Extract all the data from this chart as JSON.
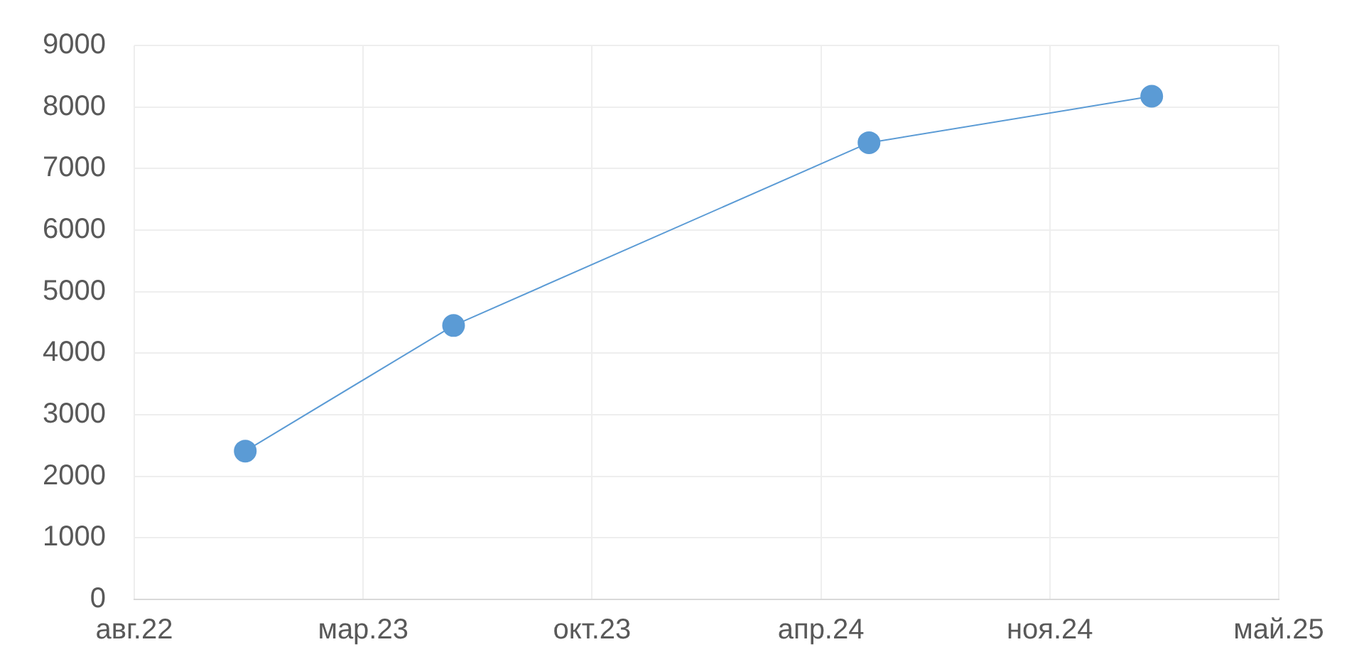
{
  "chart_data": {
    "type": "line",
    "x": [
      "2022-12-06",
      "2023-06-06",
      "2024-06-03",
      "2025-02-05"
    ],
    "series": [
      {
        "color": "#5b9bd5",
        "values": [
          2410,
          4450,
          7420,
          8175
        ]
      }
    ],
    "xlim": [
      "2022-08-31",
      "2025-05-27"
    ],
    "xticks": [
      {
        "value": "2022-08-31",
        "label": "авг.22"
      },
      {
        "value": "2023-03-19",
        "label": "мар.23"
      },
      {
        "value": "2023-10-05",
        "label": "окт.23"
      },
      {
        "value": "2024-04-22",
        "label": "апр.24"
      },
      {
        "value": "2024-11-08",
        "label": "ноя.24"
      },
      {
        "value": "2025-05-27",
        "label": "май.25"
      }
    ],
    "ylim": [
      0,
      9000
    ],
    "yticks": [
      0,
      1000,
      2000,
      3000,
      4000,
      5000,
      6000,
      7000,
      8000,
      9000
    ],
    "grid": true,
    "legend": false,
    "marker": "circle",
    "line_style": "solid"
  }
}
